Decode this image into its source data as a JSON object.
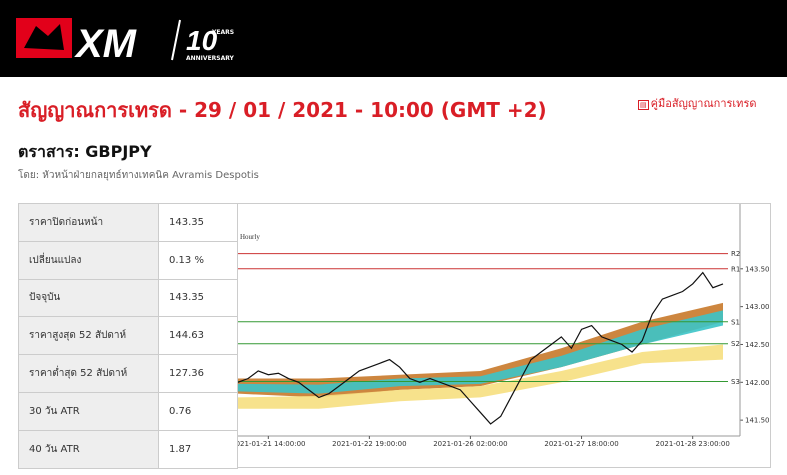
{
  "header": {
    "logo": "XM",
    "badge": "10",
    "badge_top": "YEARS",
    "badge_bottom": "ANNIVERSARY"
  },
  "title": "สัญญาณการเทรด - 29 / 01 / 2021 - 10:00 (GMT +2)",
  "guide_link": "คู่มือสัญญาณการเทรด",
  "instrument": "ตราสาร: GBPJPY",
  "author": "โดย: หัวหน้าฝ่ายกลยุทธ์ทางเทคนิค Avramis Despotis",
  "table": {
    "rows": [
      [
        "ราคาปิดก่อนหน้า",
        "143.35"
      ],
      [
        "เปลี่ยนแปลง",
        "0.13 %"
      ],
      [
        "ปัจจุบัน",
        "143.35"
      ],
      [
        "ราคาสูงสุด 52 สัปดาห์",
        "144.63"
      ],
      [
        "ราคาต่ำสุด 52 สัปดาห์",
        "127.36"
      ],
      [
        "30 วัน ATR",
        "0.76"
      ],
      [
        "40 วัน ATR",
        "1.87"
      ]
    ]
  },
  "chart_data": {
    "type": "line",
    "subtitle": "Hourly",
    "series": [
      {
        "color": "#111111",
        "values": [
          142.0,
          142.05,
          142.15,
          142.1,
          142.12,
          142.05,
          142.0,
          141.9,
          141.8,
          141.85,
          141.95,
          142.05,
          142.15,
          142.2,
          142.25,
          142.3,
          142.2,
          142.05,
          142.0,
          142.05,
          142.0,
          141.95,
          141.9,
          141.75,
          141.6,
          141.45,
          141.55,
          141.8,
          142.05,
          142.3,
          142.4,
          142.5,
          142.6,
          142.45,
          142.7,
          142.75,
          142.6,
          142.55,
          142.5,
          142.4,
          142.55,
          142.9,
          143.1,
          143.15,
          143.2,
          143.3,
          143.45,
          143.25,
          143.3
        ]
      }
    ],
    "band_x": [
      0,
      8,
      16,
      24,
      32,
      40,
      48
    ],
    "bands": [
      {
        "color": "#c8792a",
        "lower": [
          141.85,
          141.8,
          141.9,
          141.95,
          142.2,
          142.5,
          142.8
        ],
        "upper": [
          142.05,
          142.05,
          142.1,
          142.15,
          142.45,
          142.8,
          143.05
        ]
      },
      {
        "color": "#3cc4c8",
        "lower": [
          141.88,
          141.85,
          141.95,
          141.98,
          142.2,
          142.5,
          142.75
        ],
        "upper": [
          141.98,
          141.97,
          142.05,
          142.08,
          142.35,
          142.7,
          142.95
        ]
      },
      {
        "color": "#f6df80",
        "lower": [
          141.65,
          141.65,
          141.75,
          141.8,
          142.0,
          142.25,
          142.3
        ],
        "upper": [
          141.8,
          141.82,
          141.9,
          141.95,
          142.15,
          142.4,
          142.5
        ]
      }
    ],
    "levels": [
      {
        "name": "R2",
        "value": 143.7,
        "color": "#cc3333"
      },
      {
        "name": "R1",
        "value": 143.5,
        "color": "#cc3333"
      },
      {
        "name": "S1",
        "value": 142.8,
        "color": "#339933"
      },
      {
        "name": "S2",
        "value": 142.51,
        "color": "#339933"
      },
      {
        "name": "S3",
        "value": 142.01,
        "color": "#339933"
      }
    ],
    "xlim": [
      0,
      48
    ],
    "xticks": [
      {
        "value": 3,
        "label": "2021-01-21 14:00:00"
      },
      {
        "value": 13,
        "label": "2021-01-22 19:00:00"
      },
      {
        "value": 23,
        "label": "2021-01-26 02:00:00"
      },
      {
        "value": 34,
        "label": "2021-01-27 18:00:00"
      },
      {
        "value": 45,
        "label": "2021-01-28 23:00:00"
      }
    ],
    "ylim": [
      141.33,
      144.33
    ],
    "yticks": [
      {
        "value": 141.5,
        "label": "141.50"
      },
      {
        "value": 142,
        "label": "142.00"
      },
      {
        "value": 142.5,
        "label": "142.50"
      },
      {
        "value": 143,
        "label": "143.00"
      },
      {
        "value": 143.5,
        "label": "143.50"
      }
    ]
  }
}
